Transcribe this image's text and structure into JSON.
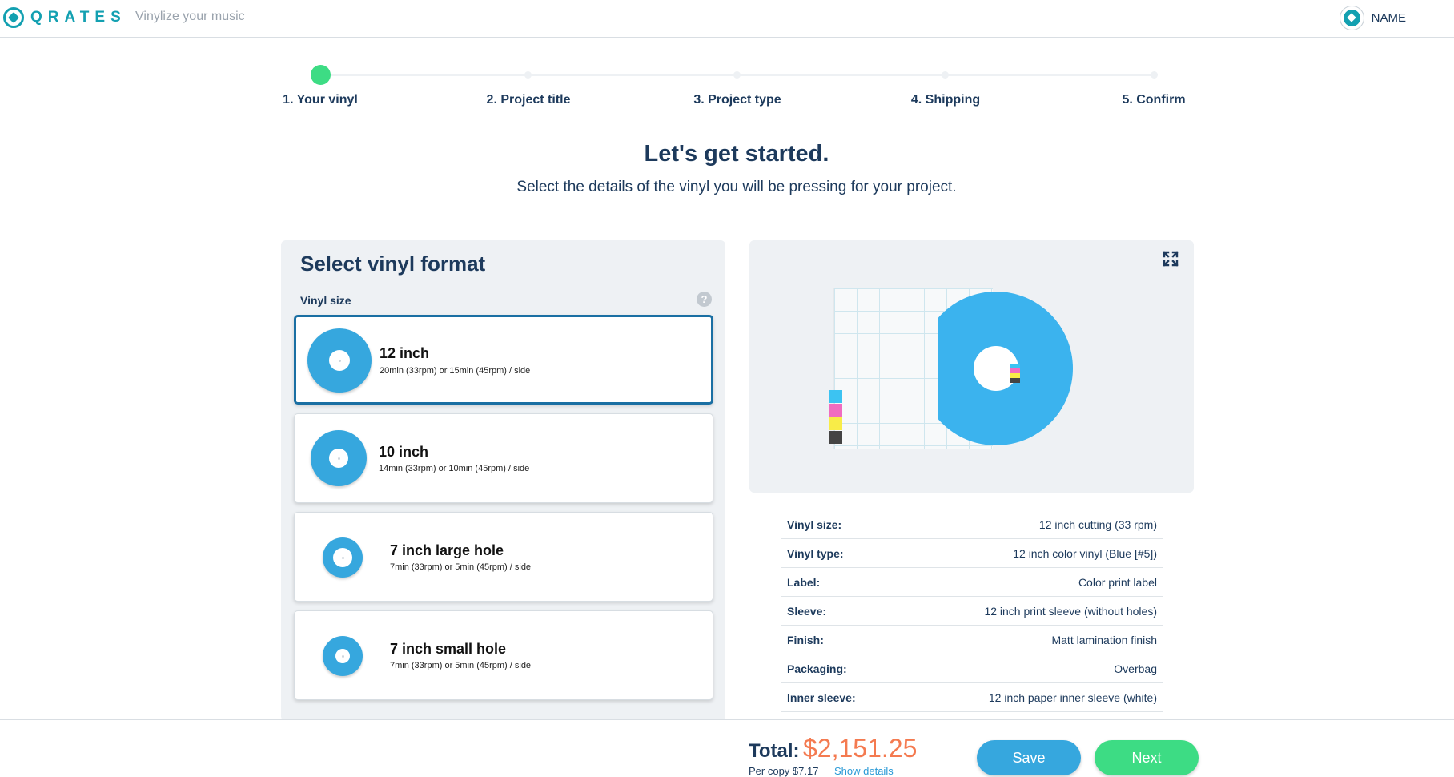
{
  "header": {
    "logo_text": "QRATES",
    "tagline": "Vinylize your music",
    "user_name": "NAME"
  },
  "steps": [
    {
      "label": "1. Your vinyl",
      "active": true
    },
    {
      "label": "2. Project title",
      "active": false
    },
    {
      "label": "3. Project type",
      "active": false
    },
    {
      "label": "4. Shipping",
      "active": false
    },
    {
      "label": "5. Confirm",
      "active": false
    }
  ],
  "intro": {
    "title": "Let's get started.",
    "subtitle": "Select the details of the vinyl you will be pressing for your project."
  },
  "format": {
    "title": "Select vinyl format",
    "size_label": "Vinyl size",
    "help": "?",
    "options": [
      {
        "title": "12 inch",
        "desc": "20min (33rpm) or 15min (45rpm) / side",
        "selected": true
      },
      {
        "title": "10 inch",
        "desc": "14min (33rpm) or 10min (45rpm) / side",
        "selected": false
      },
      {
        "title": "7 inch large hole",
        "desc": "7min (33rpm) or 5min (45rpm) / side",
        "selected": false
      },
      {
        "title": "7 inch small hole",
        "desc": "7min (33rpm) or 5min (45rpm) / side",
        "selected": false
      }
    ]
  },
  "preview": {
    "expand_icon": "expand-icon",
    "record_color": "#3bb3ee",
    "cmyk_colors": [
      "#3cc3f2",
      "#f06cc0",
      "#f8ec48",
      "#444444"
    ]
  },
  "specs": [
    {
      "key": "Vinyl size:",
      "value": "12 inch cutting (33 rpm)"
    },
    {
      "key": "Vinyl type:",
      "value": "12 inch color vinyl (Blue [#5])"
    },
    {
      "key": "Label:",
      "value": "Color print label"
    },
    {
      "key": "Sleeve:",
      "value": "12 inch print sleeve (without holes)"
    },
    {
      "key": "Finish:",
      "value": "Matt lamination finish"
    },
    {
      "key": "Packaging:",
      "value": "Overbag"
    },
    {
      "key": "Inner sleeve:",
      "value": "12 inch paper inner sleeve (white)"
    }
  ],
  "footer": {
    "total_label": "Total:",
    "total_value": "$2,151.25",
    "per_copy": "Per copy $7.17",
    "show_details": "Show details",
    "save_label": "Save",
    "next_label": "Next"
  },
  "colors": {
    "brand": "#13a0b1",
    "accent_blue": "#36a7de",
    "accent_green": "#3ddc84",
    "price_orange": "#f47a50",
    "text_navy": "#1d3a5c"
  }
}
